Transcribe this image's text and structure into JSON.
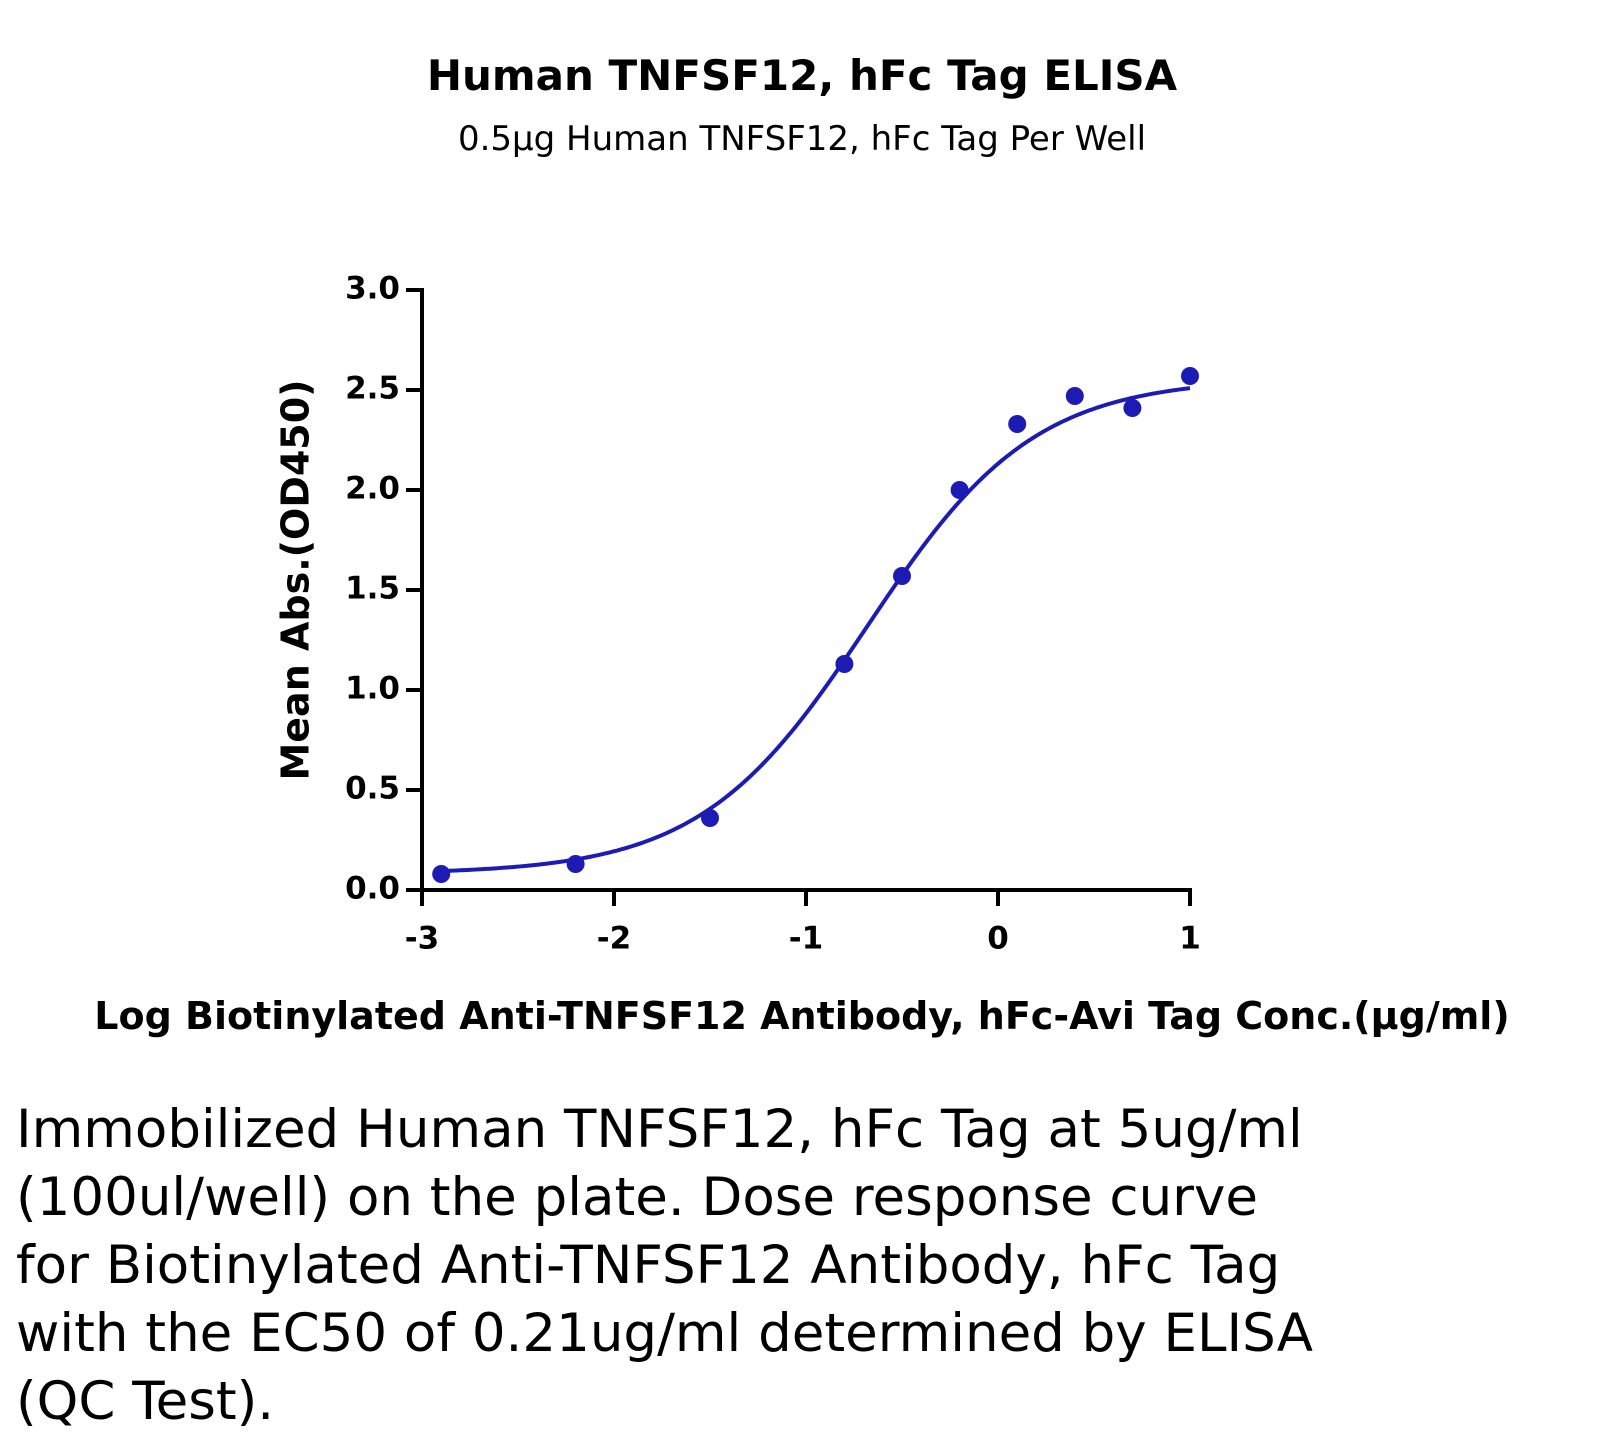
{
  "chart_data": {
    "type": "scatter",
    "title": "Human TNFSF12, hFc Tag ELISA",
    "subtitle": "0.5μg Human TNFSF12, hFc Tag Per Well",
    "xlabel": "Log Biotinylated Anti-TNFSF12 Antibody, hFc-Avi Tag Conc.(μg/ml)",
    "ylabel": "Mean Abs.(OD450)",
    "xlim": [
      -3,
      1
    ],
    "ylim": [
      0,
      3.0
    ],
    "x_ticks": [
      "-3",
      "-2",
      "-1",
      "0",
      "1"
    ],
    "x_tick_values": [
      -3,
      -2,
      -1,
      0,
      1
    ],
    "y_ticks": [
      "0.0",
      "0.5",
      "1.0",
      "1.5",
      "2.0",
      "2.5",
      "3.0"
    ],
    "y_tick_values": [
      0,
      0.5,
      1.0,
      1.5,
      2.0,
      2.5,
      3.0
    ],
    "grid": false,
    "legend": "none",
    "series": [
      {
        "x": [
          -2.9,
          -2.2,
          -1.5,
          -0.8,
          -0.5,
          -0.2,
          0.1,
          0.4,
          0.7,
          1.0
        ],
        "y": [
          0.08,
          0.13,
          0.36,
          1.13,
          1.57,
          2.0,
          2.33,
          2.47,
          2.41,
          2.57
        ],
        "fit": "4-parameter logistic",
        "fit_params": {
          "bottom": 0.08,
          "top": 2.56,
          "log_ec50": -0.68,
          "hill_slope": 1.0
        },
        "color": "#1c1cb4"
      }
    ],
    "caption": "Immobilized Human TNFSF12, hFc Tag at 5ug/ml (100ul/well) on the plate. Dose response curve for Biotinylated Anti-TNFSF12 Antibody, hFc Tag with the EC50 of 0.21ug/ml determined by ELISA (QC Test)."
  }
}
